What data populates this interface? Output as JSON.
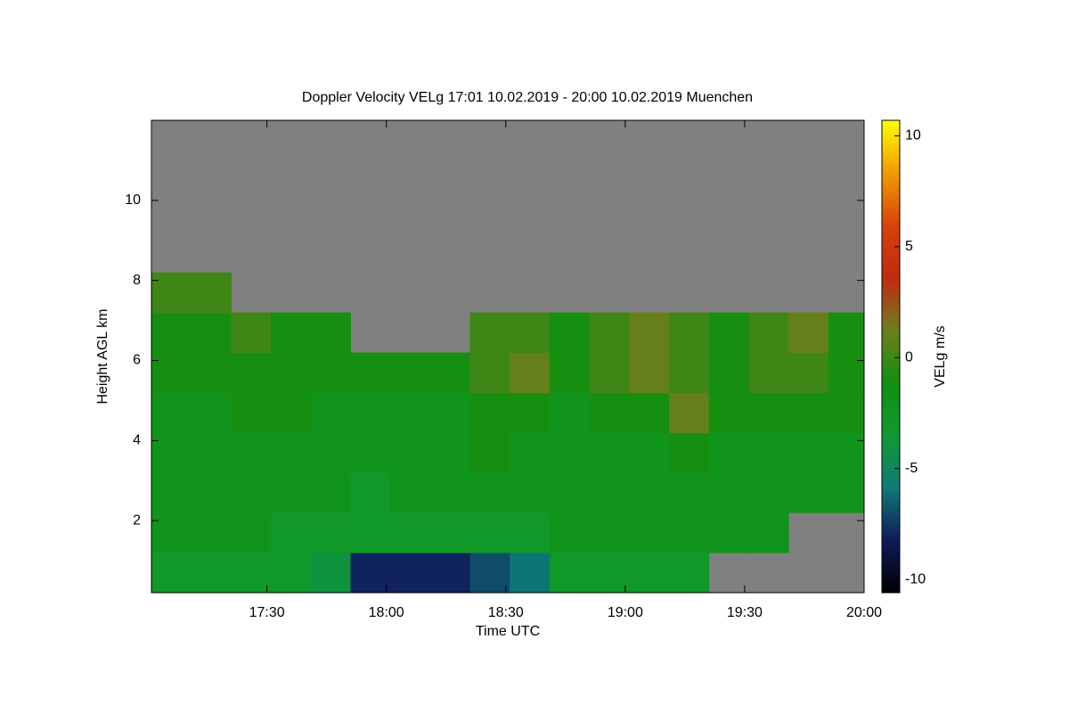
{
  "chart_data": {
    "type": "heatmap",
    "title": "Doppler Velocity VELg   17:01 10.02.2019 - 20:00 10.02.2019 Muenchen",
    "x_label": "Time UTC",
    "y_label": "Height AGL km",
    "colorbar_label": "VELg m/s",
    "missing_color": "#808080",
    "colormap": [
      "#000000",
      "#101a5a",
      "#0e7a78",
      "#109a30",
      "#119010",
      "#6e7e1c",
      "#c02a10",
      "#d8420c",
      "#f29a00",
      "#ffff00"
    ],
    "xlim": [
      1021,
      1200
    ],
    "xticks": [
      {
        "value": 1050,
        "label": "17:30"
      },
      {
        "value": 1080,
        "label": "18:00"
      },
      {
        "value": 1110,
        "label": "18:30"
      },
      {
        "value": 1140,
        "label": "19:00"
      },
      {
        "value": 1170,
        "label": "19:30"
      },
      {
        "value": 1200,
        "label": "20:00"
      }
    ],
    "ylim": [
      0.2,
      12
    ],
    "yticks": [
      2,
      4,
      6,
      8,
      10
    ],
    "zlim": [
      -10.6,
      10.7
    ],
    "zticks": [
      -10,
      -5,
      0,
      5,
      10
    ],
    "x": [
      1026,
      1036,
      1046,
      1056,
      1066,
      1076,
      1086,
      1096,
      1106,
      1116,
      1126,
      1136,
      1146,
      1156,
      1166,
      1176,
      1186,
      1196
    ],
    "y": [
      0.7,
      1.7,
      2.7,
      3.7,
      4.7,
      5.7,
      6.7,
      7.7,
      8.7,
      9.7,
      10.7,
      11.7
    ],
    "values": [
      [
        -3,
        -3,
        -3,
        -3,
        -4,
        -8,
        -8,
        -8,
        -7,
        -6,
        -3,
        -3,
        -3,
        -3,
        null,
        null,
        null,
        null
      ],
      [
        -2,
        -2,
        -2,
        -3,
        -3,
        -3,
        -3,
        -3,
        -3,
        -3,
        -2,
        -2,
        -2,
        -2,
        -2,
        -2,
        null,
        null
      ],
      [
        -2,
        -2,
        -2,
        -2,
        -2,
        -3,
        -2,
        -2,
        -2,
        -2,
        -2,
        -2,
        -2,
        -2,
        -2,
        -2,
        -2,
        -2
      ],
      [
        -2,
        -2,
        -2,
        -2,
        -2,
        -2,
        -2,
        -2,
        -1,
        -2,
        -2,
        -2,
        -2,
        -1,
        -2,
        -2,
        -2,
        -2
      ],
      [
        -2,
        -2,
        -1,
        -1,
        -2,
        -2,
        -2,
        -2,
        -1,
        -1,
        -2,
        -1,
        -1,
        1,
        -1,
        -1,
        -1,
        -1
      ],
      [
        -1,
        -1,
        -1,
        -1,
        -1,
        -1,
        -1,
        -1,
        0,
        1,
        -1,
        0,
        1,
        0,
        -1,
        0,
        0,
        -1
      ],
      [
        -1,
        -1,
        0,
        -1,
        -1,
        null,
        null,
        null,
        0,
        0,
        -1,
        0,
        1,
        0,
        -1,
        0,
        1,
        -1
      ],
      [
        0,
        0,
        null,
        null,
        null,
        null,
        null,
        null,
        null,
        null,
        null,
        null,
        null,
        null,
        null,
        null,
        null,
        null
      ],
      [
        null,
        null,
        null,
        null,
        null,
        null,
        null,
        null,
        null,
        null,
        null,
        null,
        null,
        null,
        null,
        null,
        null,
        null
      ],
      [
        null,
        null,
        null,
        null,
        null,
        null,
        null,
        null,
        null,
        null,
        null,
        null,
        null,
        null,
        null,
        null,
        null,
        null
      ],
      [
        null,
        null,
        null,
        null,
        null,
        null,
        null,
        null,
        null,
        null,
        null,
        null,
        null,
        null,
        null,
        null,
        null,
        null
      ],
      [
        null,
        null,
        null,
        null,
        null,
        null,
        null,
        null,
        null,
        null,
        null,
        null,
        null,
        null,
        null,
        null,
        null,
        null
      ]
    ]
  }
}
